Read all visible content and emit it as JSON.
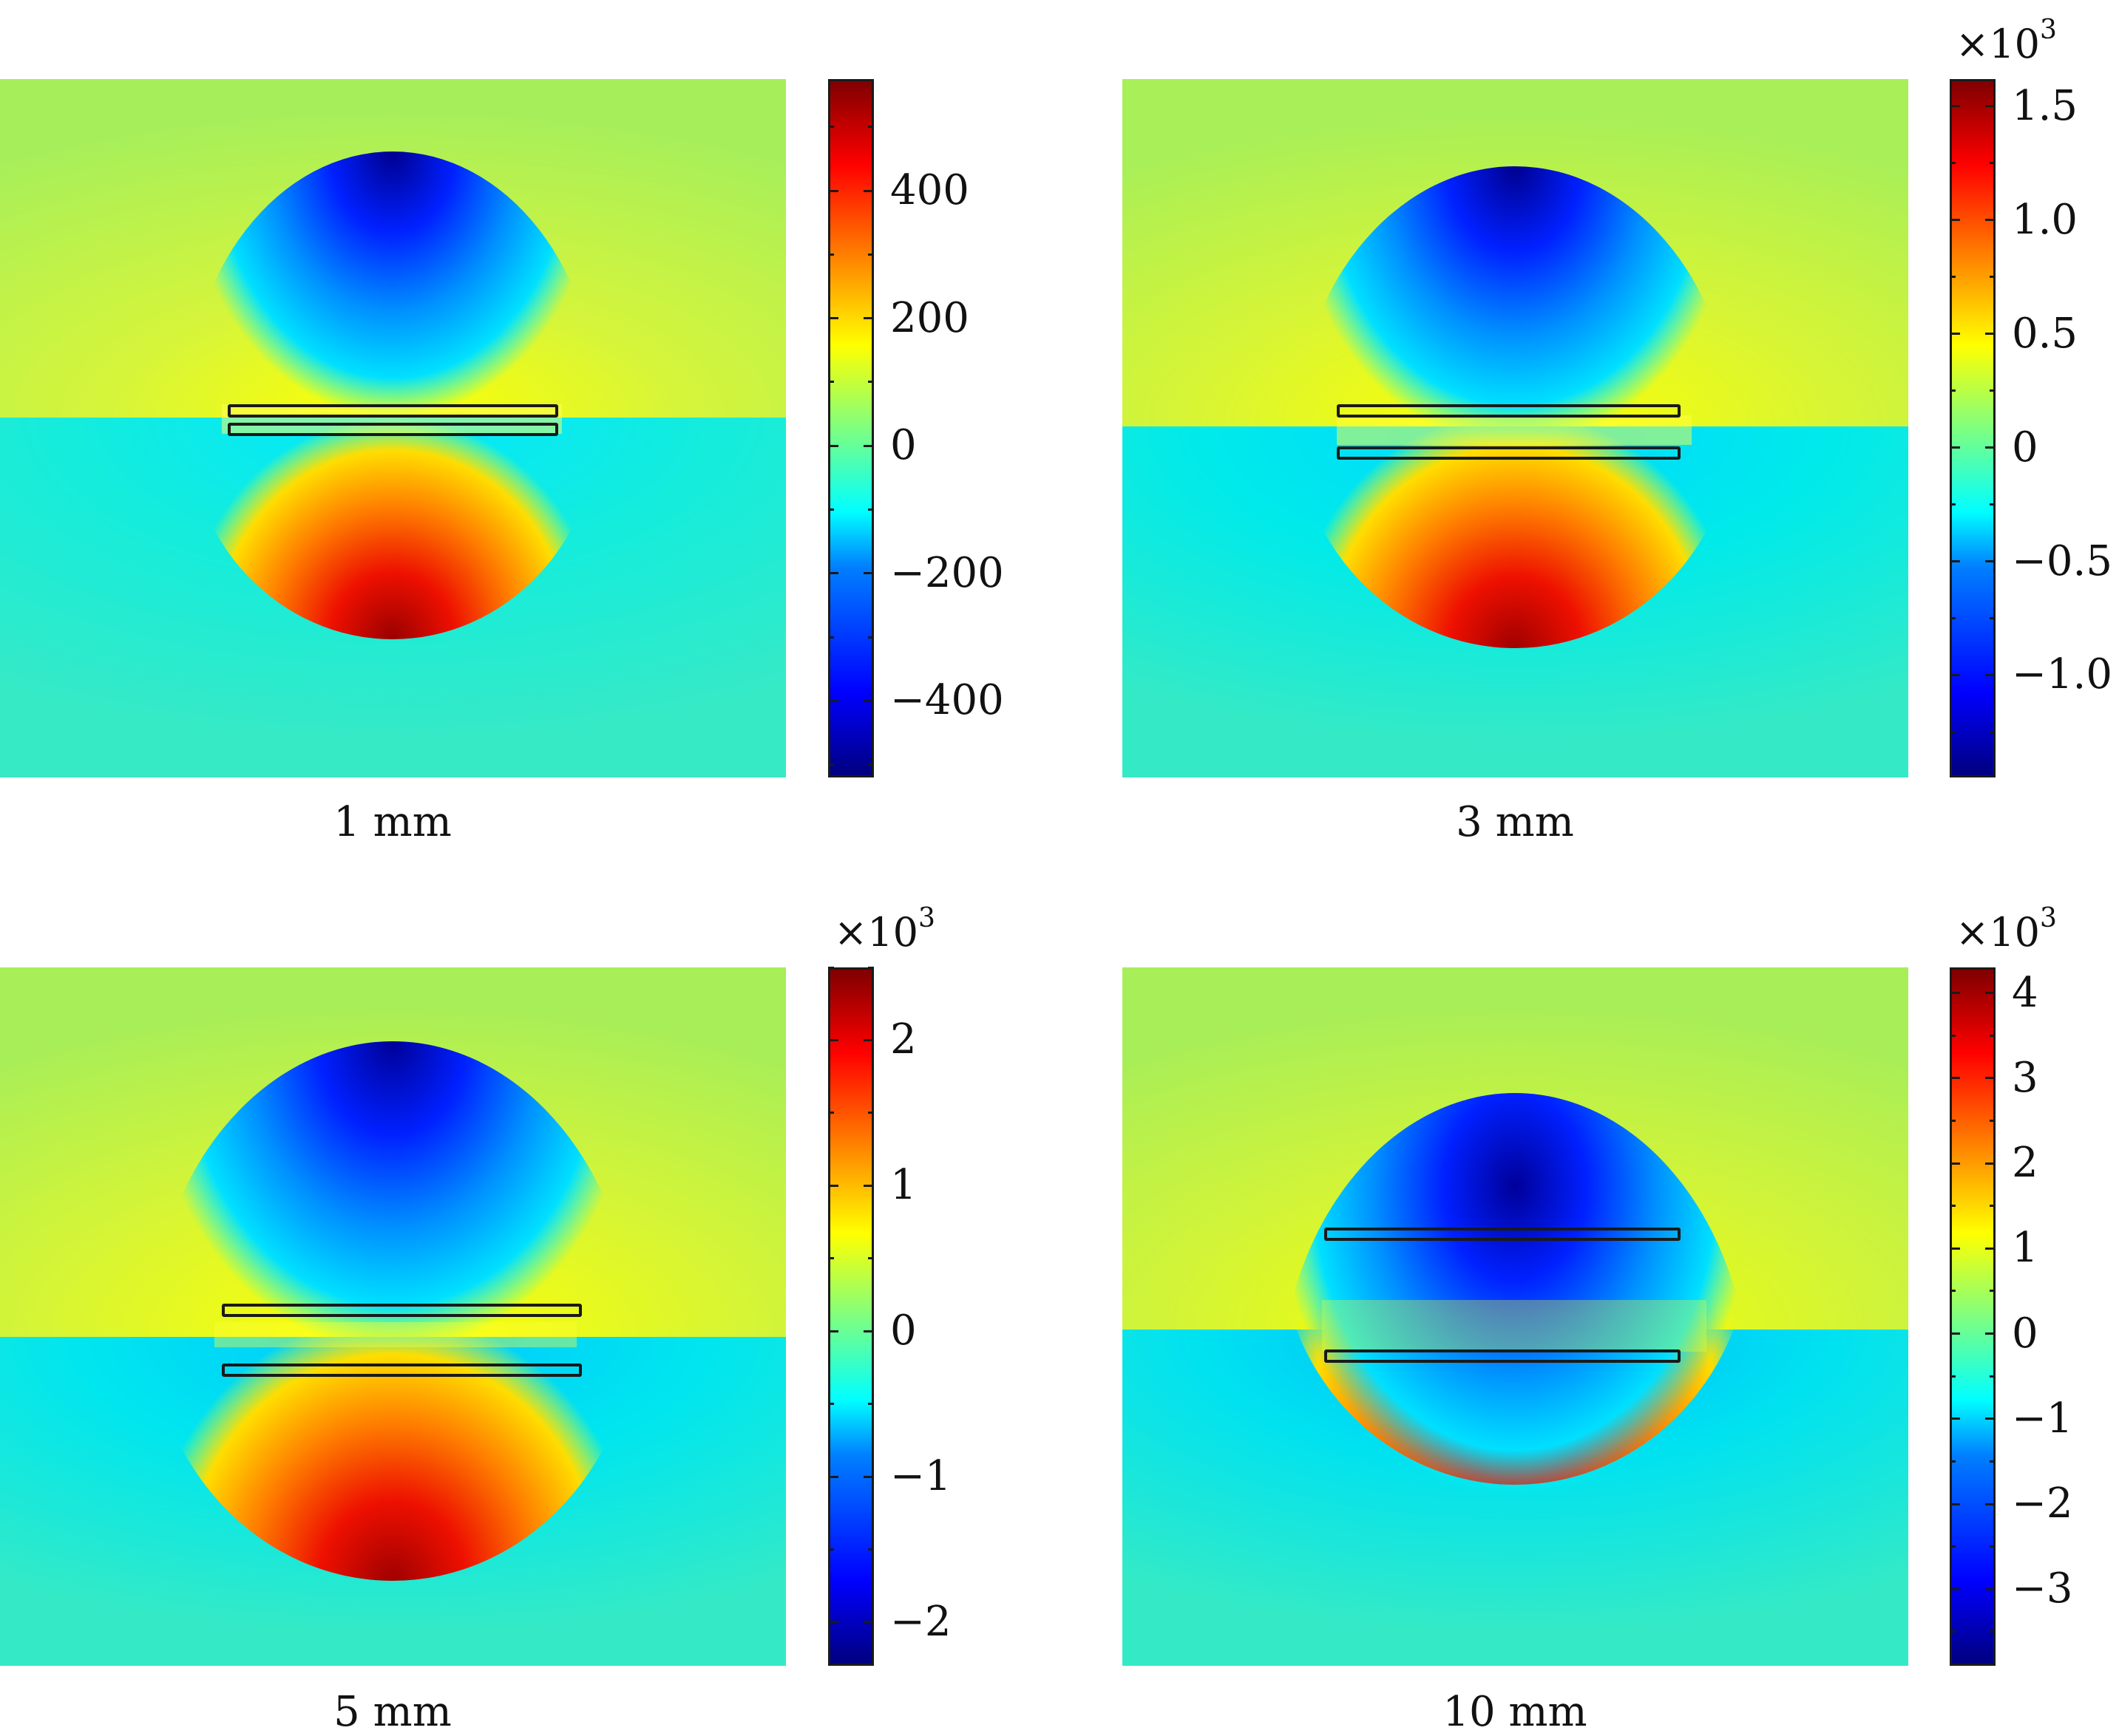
{
  "chart_data": [
    {
      "type": "heatmap",
      "caption": "1 mm",
      "colormap": "jet",
      "multiplier": "",
      "colorbar": {
        "min": -520,
        "max": 575,
        "ticks": [
          400,
          200,
          0,
          -200,
          -400
        ],
        "tick_labels": [
          "400",
          "200",
          "0",
          "−200",
          "−400"
        ]
      }
    },
    {
      "type": "heatmap",
      "caption": "3 mm",
      "colormap": "jet",
      "multiplier": "×10",
      "multiplier_exp": "3",
      "colorbar": {
        "min": -1.45,
        "max": 1.62,
        "ticks": [
          1.5,
          1.0,
          0.5,
          0,
          -0.5,
          -1.0
        ],
        "tick_labels": [
          "1.5",
          "1.0",
          "0.5",
          "0",
          "−0.5",
          "−1.0"
        ]
      }
    },
    {
      "type": "heatmap",
      "caption": "5 mm",
      "colormap": "jet",
      "multiplier": "×10",
      "multiplier_exp": "3",
      "colorbar": {
        "min": -2.3,
        "max": 2.5,
        "ticks": [
          2,
          1,
          0,
          -1,
          -2
        ],
        "tick_labels": [
          "2",
          "1",
          "0",
          "−1",
          "−2"
        ]
      }
    },
    {
      "type": "heatmap",
      "caption": "10 mm",
      "colormap": "jet",
      "multiplier": "×10",
      "multiplier_exp": "3",
      "colorbar": {
        "min": -3.9,
        "max": 4.3,
        "ticks": [
          4,
          3,
          2,
          1,
          0,
          -1,
          -2,
          -3
        ],
        "tick_labels": [
          "4",
          "3",
          "2",
          "1",
          "0",
          "−1",
          "−2",
          "−3"
        ]
      }
    }
  ]
}
